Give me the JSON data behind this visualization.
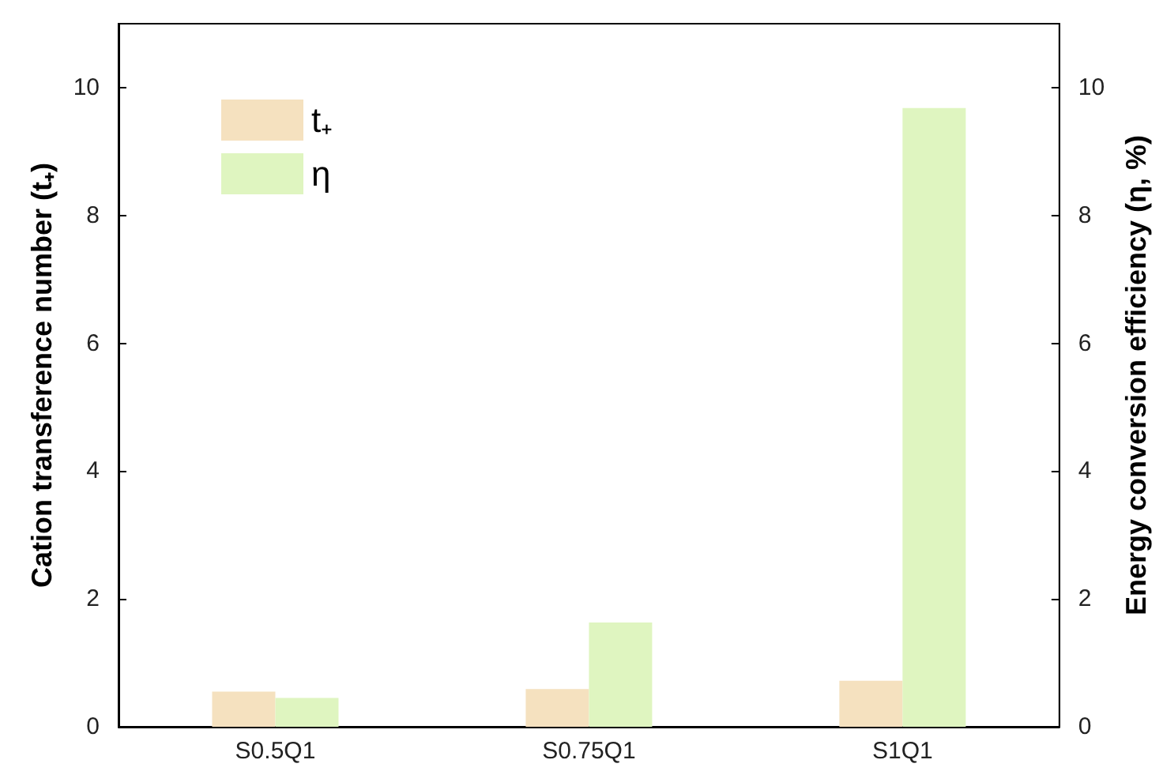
{
  "chart_data": {
    "type": "bar",
    "ylabel": "Cation transference number (t₊)",
    "y2label": "Energy conversion efficiency (η, %)",
    "categories": [
      "S0.5Q1",
      "S0.75Q1",
      "S1Q1"
    ],
    "series": [
      {
        "name": "t₊",
        "color": "#f5e1bf",
        "values": [
          0.55,
          0.59,
          0.72
        ]
      },
      {
        "name": "η",
        "color": "#dff5c0",
        "values": [
          0.45,
          1.63,
          9.68
        ],
        "axis": "y2"
      }
    ],
    "ylim": [
      0,
      11
    ],
    "yticks": [
      0,
      2,
      4,
      6,
      8,
      10
    ],
    "y2lim": [
      0,
      11
    ],
    "y2ticks": [
      0,
      2,
      4,
      6,
      8,
      10
    ],
    "legend": "top left",
    "grid": false
  }
}
